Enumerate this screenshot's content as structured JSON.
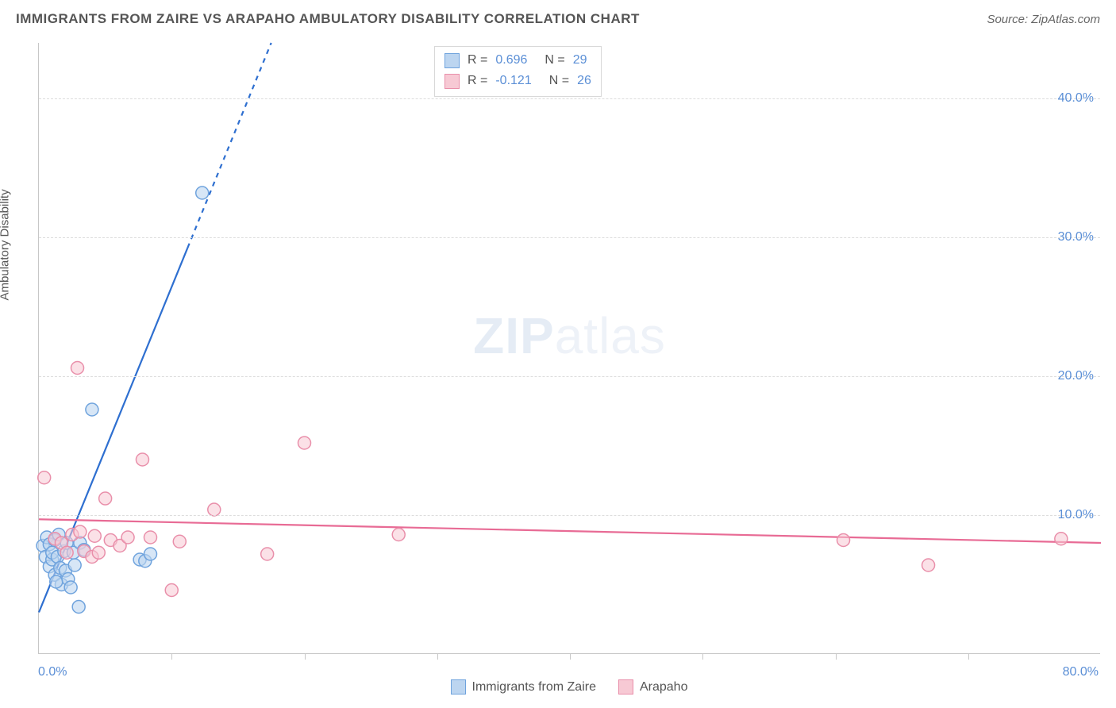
{
  "header": {
    "title": "IMMIGRANTS FROM ZAIRE VS ARAPAHO AMBULATORY DISABILITY CORRELATION CHART",
    "source": "Source: ZipAtlas.com"
  },
  "chart": {
    "type": "scatter",
    "ylabel": "Ambulatory Disability",
    "watermark_bold": "ZIP",
    "watermark_light": "atlas",
    "xlim": [
      0,
      80
    ],
    "ylim": [
      0,
      44
    ],
    "x_min_label": "0.0%",
    "x_max_label": "80.0%",
    "y_ticks": [
      {
        "v": 10,
        "label": "10.0%"
      },
      {
        "v": 20,
        "label": "20.0%"
      },
      {
        "v": 30,
        "label": "30.0%"
      },
      {
        "v": 40,
        "label": "40.0%"
      }
    ],
    "x_tick_step": 10,
    "background_color": "#ffffff",
    "grid_color": "#dddddd",
    "axis_color": "#c7c7c7",
    "tick_label_color": "#5b8fd6",
    "marker_radius": 8,
    "marker_stroke_width": 1.5,
    "series": [
      {
        "name": "Immigrants from Zaire",
        "fill_color": "#bcd5f0",
        "stroke_color": "#6fa3dd",
        "fill_opacity": 0.6,
        "r_label": "R =",
        "r_value": "0.696",
        "n_label": "N =",
        "n_value": "29",
        "trend": {
          "x1": 0,
          "y1": 3.0,
          "x2": 17.5,
          "y2": 44.0,
          "solid_until_x": 11.2,
          "color": "#2e6fd0",
          "width": 2.2
        },
        "points": [
          [
            0.3,
            7.8
          ],
          [
            0.5,
            7.0
          ],
          [
            0.6,
            8.4
          ],
          [
            0.8,
            6.3
          ],
          [
            0.8,
            7.9
          ],
          [
            1.0,
            6.8
          ],
          [
            1.0,
            7.3
          ],
          [
            1.2,
            5.7
          ],
          [
            1.2,
            8.2
          ],
          [
            1.4,
            7.0
          ],
          [
            1.5,
            8.6
          ],
          [
            1.6,
            6.2
          ],
          [
            1.7,
            5.0
          ],
          [
            1.9,
            7.4
          ],
          [
            2.0,
            6.0
          ],
          [
            2.1,
            8.0
          ],
          [
            2.2,
            5.4
          ],
          [
            2.4,
            4.8
          ],
          [
            2.6,
            7.3
          ],
          [
            2.7,
            6.4
          ],
          [
            3.0,
            3.4
          ],
          [
            3.1,
            8.0
          ],
          [
            3.4,
            7.5
          ],
          [
            4.0,
            17.6
          ],
          [
            7.6,
            6.8
          ],
          [
            8.0,
            6.7
          ],
          [
            8.4,
            7.2
          ],
          [
            12.3,
            33.2
          ],
          [
            1.3,
            5.2
          ]
        ]
      },
      {
        "name": "Arapaho",
        "fill_color": "#f7c9d4",
        "stroke_color": "#e98faa",
        "fill_opacity": 0.55,
        "r_label": "R =",
        "r_value": "-0.121",
        "n_label": "N =",
        "n_value": "26",
        "trend": {
          "x1": 0,
          "y1": 9.7,
          "x2": 80,
          "y2": 8.0,
          "solid_until_x": 80,
          "color": "#e86b95",
          "width": 2.2
        },
        "points": [
          [
            0.4,
            12.7
          ],
          [
            1.2,
            8.3
          ],
          [
            1.7,
            8.0
          ],
          [
            2.1,
            7.3
          ],
          [
            2.5,
            8.6
          ],
          [
            2.9,
            20.6
          ],
          [
            3.1,
            8.8
          ],
          [
            3.4,
            7.4
          ],
          [
            4.0,
            7.0
          ],
          [
            4.2,
            8.5
          ],
          [
            4.5,
            7.3
          ],
          [
            5.0,
            11.2
          ],
          [
            5.4,
            8.2
          ],
          [
            6.1,
            7.8
          ],
          [
            6.7,
            8.4
          ],
          [
            7.8,
            14.0
          ],
          [
            8.4,
            8.4
          ],
          [
            10.0,
            4.6
          ],
          [
            10.6,
            8.1
          ],
          [
            13.2,
            10.4
          ],
          [
            17.2,
            7.2
          ],
          [
            20.0,
            15.2
          ],
          [
            27.1,
            8.6
          ],
          [
            60.6,
            8.2
          ],
          [
            67.0,
            6.4
          ],
          [
            77.0,
            8.3
          ]
        ]
      }
    ]
  }
}
